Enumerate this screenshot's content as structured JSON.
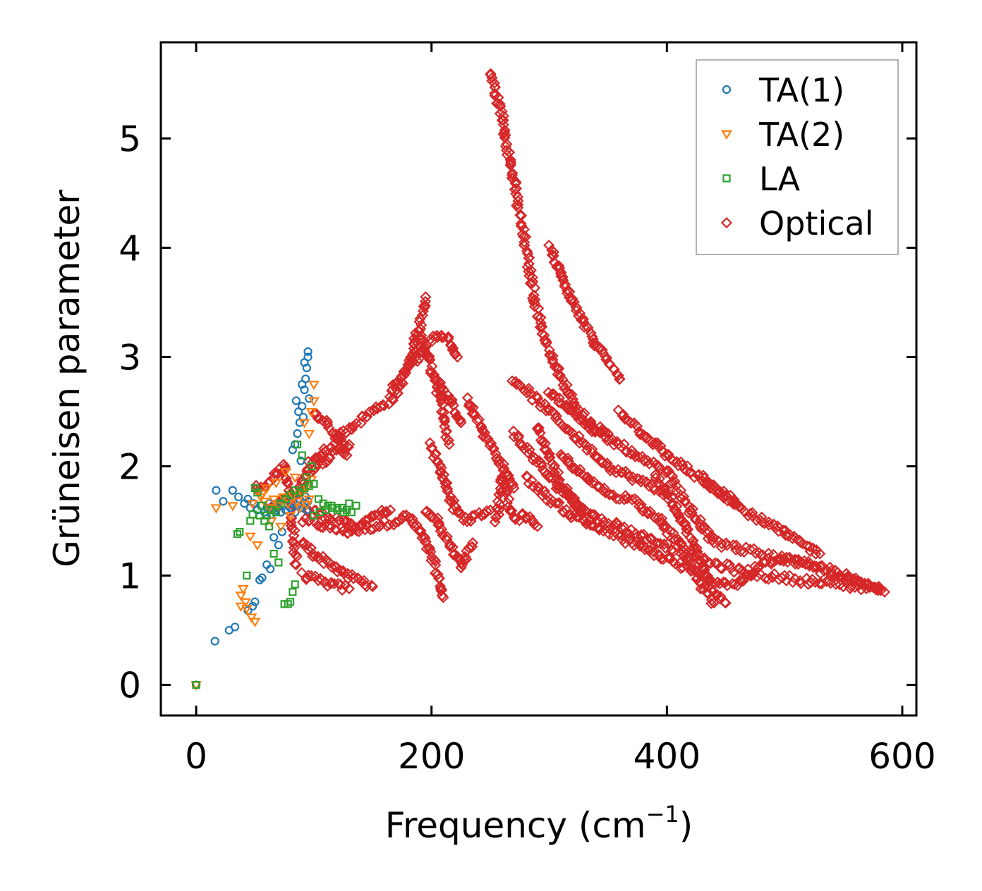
{
  "chart_data": {
    "type": "scatter",
    "title": "",
    "xlabel": "Frequency (cm",
    "xlabel_sup": "−1",
    "xlabel_end": ")",
    "ylabel": "Grüneisen parameter",
    "xlim": [
      -30,
      612
    ],
    "ylim": [
      -0.28,
      5.88
    ],
    "xticks": [
      0,
      200,
      400,
      600
    ],
    "xtick_labels": [
      "0",
      "200",
      "400",
      "600"
    ],
    "yticks": [
      0,
      1,
      2,
      3,
      4,
      5
    ],
    "ytick_labels": [
      "0",
      "1",
      "2",
      "3",
      "4",
      "5"
    ],
    "grid": false,
    "legend_position": "top-right",
    "series": [
      {
        "name": "TA(1)",
        "marker": "circle",
        "color": "#1f77b4",
        "x": [
          0,
          16,
          28,
          33,
          17,
          23,
          31,
          36,
          41,
          44,
          46,
          49,
          52,
          55,
          58,
          60,
          62,
          64,
          66,
          68,
          70,
          72,
          74,
          76,
          78,
          80,
          82,
          84,
          86,
          88,
          90,
          92,
          93,
          94,
          95,
          54,
          60,
          63,
          66,
          70,
          73,
          50,
          56,
          44,
          48,
          84,
          86,
          88,
          90,
          92,
          93,
          94,
          95,
          96,
          91,
          89,
          82,
          85,
          87,
          90,
          92,
          95
        ],
        "y": [
          0,
          0.4,
          0.5,
          0.53,
          1.78,
          1.68,
          1.78,
          1.72,
          1.66,
          1.7,
          1.62,
          1.66,
          1.6,
          1.64,
          1.58,
          1.62,
          1.66,
          1.56,
          1.62,
          1.6,
          1.66,
          1.58,
          1.64,
          1.6,
          1.7,
          1.62,
          1.66,
          1.58,
          1.64,
          1.7,
          1.62,
          1.66,
          1.72,
          1.6,
          1.68,
          0.96,
          1.1,
          1.06,
          1.35,
          1.28,
          1.4,
          0.76,
          0.98,
          0.68,
          0.72,
          2.2,
          2.3,
          2.4,
          2.55,
          2.7,
          2.8,
          2.9,
          3.05,
          2.62,
          2.45,
          2.05,
          2.15,
          2.6,
          2.5,
          2.75,
          2.95,
          3.0
        ]
      },
      {
        "name": "TA(2)",
        "marker": "triangle-down",
        "color": "#ff7f0e",
        "x": [
          0,
          17,
          31,
          38,
          40,
          43,
          47,
          50,
          55,
          58,
          62,
          66,
          70,
          74,
          78,
          82,
          86,
          90,
          94,
          98,
          46,
          52,
          64,
          72,
          80,
          88,
          96,
          100,
          92,
          84,
          76,
          68,
          60,
          56,
          48,
          42,
          38,
          100,
          98,
          96,
          94
        ],
        "y": [
          0,
          1.62,
          1.64,
          0.82,
          0.88,
          0.7,
          0.62,
          0.58,
          1.72,
          1.68,
          1.62,
          1.7,
          1.64,
          1.72,
          1.66,
          1.74,
          1.68,
          1.76,
          1.8,
          1.88,
          1.36,
          1.28,
          1.5,
          1.45,
          1.55,
          1.62,
          2.3,
          2.75,
          2.4,
          1.9,
          1.95,
          1.85,
          1.8,
          1.75,
          1.66,
          0.76,
          0.72,
          2.6,
          2.5,
          1.7,
          1.65
        ]
      },
      {
        "name": "LA",
        "marker": "square",
        "color": "#2ca02c",
        "x": [
          0,
          35,
          37,
          43,
          46,
          48,
          50,
          52,
          56,
          60,
          64,
          68,
          72,
          76,
          80,
          84,
          88,
          92,
          96,
          100,
          104,
          108,
          112,
          116,
          120,
          124,
          128,
          132,
          136,
          78,
          80,
          82,
          84,
          75,
          70,
          66,
          62,
          58,
          54,
          100,
          105,
          110,
          115,
          120,
          125,
          130,
          86,
          90,
          94,
          98
        ],
        "y": [
          0,
          1.38,
          1.4,
          1.0,
          1.5,
          1.56,
          1.8,
          1.76,
          1.64,
          1.55,
          1.6,
          1.58,
          1.66,
          1.7,
          1.74,
          1.78,
          1.76,
          1.8,
          1.82,
          1.84,
          1.7,
          1.66,
          1.64,
          1.62,
          1.6,
          1.62,
          1.6,
          1.58,
          1.64,
          0.74,
          0.76,
          0.85,
          0.92,
          0.74,
          1.12,
          1.2,
          1.45,
          1.5,
          1.55,
          1.55,
          1.58,
          1.6,
          1.64,
          1.62,
          1.58,
          1.66,
          2.2,
          2.1,
          1.9,
          2.0
        ]
      },
      {
        "name": "Optical",
        "marker": "diamond",
        "color": "#d62728",
        "segments": [
          {
            "x": [
              90,
              110,
              130,
              150,
              170,
              180,
              190,
              200,
              210
            ],
            "y": [
              1.5,
              1.45,
              1.4,
              1.45,
              1.5,
              1.55,
              1.4,
              1.2,
              0.8
            ]
          },
          {
            "x": [
              95,
              110,
              125,
              135,
              150,
              165
            ],
            "y": [
              1.6,
              1.55,
              1.5,
              1.42,
              1.55,
              1.6
            ]
          },
          {
            "x": [
              90,
              105,
              120,
              130
            ],
            "y": [
              1.0,
              0.95,
              0.9,
              0.88
            ]
          },
          {
            "x": [
              90,
              100,
              115,
              128,
              140,
              150
            ],
            "y": [
              1.3,
              1.2,
              1.1,
              1.0,
              0.95,
              0.9
            ]
          },
          {
            "x": [
              95,
              110,
              130,
              150,
              170,
              180,
              190,
              195
            ],
            "y": [
              2.0,
              2.15,
              2.35,
              2.5,
              2.65,
              2.9,
              3.3,
              3.55
            ]
          },
          {
            "x": [
              90,
              100,
              115,
              130
            ],
            "y": [
              1.9,
              2.0,
              2.1,
              2.2
            ]
          },
          {
            "x": [
              100,
              110,
              120,
              128
            ],
            "y": [
              2.5,
              2.4,
              2.25,
              2.1
            ]
          },
          {
            "x": [
              165,
              180,
              195,
              205,
              215,
              222
            ],
            "y": [
              2.7,
              2.9,
              3.1,
              3.2,
              3.15,
              3.0
            ]
          },
          {
            "x": [
              190,
              200,
              210,
              215
            ],
            "y": [
              3.2,
              2.9,
              2.5,
              2.2
            ]
          },
          {
            "x": [
              195,
              205,
              215,
              225,
              235
            ],
            "y": [
              1.6,
              1.5,
              1.3,
              1.1,
              1.3
            ]
          },
          {
            "x": [
              200,
              210,
              220,
              230,
              240,
              250
            ],
            "y": [
              2.2,
              1.9,
              1.6,
              1.5,
              1.55,
              1.6
            ]
          },
          {
            "x": [
              205,
              215,
              225
            ],
            "y": [
              2.8,
              2.6,
              2.4
            ]
          },
          {
            "x": [
              230,
              240,
              250,
              260,
              270
            ],
            "y": [
              2.6,
              2.4,
              2.2,
              2.0,
              1.8
            ]
          },
          {
            "x": [
              250,
              255,
              260,
              265,
              270,
              275,
              280,
              285,
              290,
              300,
              310,
              320,
              330,
              340,
              350
            ],
            "y": [
              5.6,
              5.4,
              5.2,
              4.9,
              4.6,
              4.3,
              4.0,
              3.7,
              3.4,
              3.05,
              2.8,
              2.6,
              2.45,
              2.35,
              2.3
            ]
          },
          {
            "x": [
              270,
              280,
              290,
              300,
              310,
              320,
              330,
              340,
              350,
              360,
              370,
              380,
              390,
              400
            ],
            "y": [
              2.8,
              2.7,
              2.6,
              2.5,
              2.4,
              2.3,
              2.2,
              2.1,
              2.0,
              1.95,
              1.9,
              1.85,
              1.8,
              1.75
            ]
          },
          {
            "x": [
              270,
              285,
              300,
              315,
              330,
              345,
              360,
              375,
              390,
              405,
              420,
              435,
              450,
              465,
              480,
              500,
              520,
              540,
              560,
              580
            ],
            "y": [
              2.3,
              2.1,
              1.9,
              1.75,
              1.6,
              1.5,
              1.45,
              1.38,
              1.32,
              1.25,
              1.2,
              1.12,
              1.08,
              1.04,
              1.0,
              0.98,
              0.95,
              0.92,
              0.9,
              0.88
            ]
          },
          {
            "x": [
              280,
              300,
              320,
              340,
              360,
              380,
              400,
              420,
              440,
              460,
              480,
              500,
              520,
              540,
              560,
              580
            ],
            "y": [
              1.9,
              1.7,
              1.55,
              1.45,
              1.35,
              1.25,
              1.15,
              1.05,
              0.95,
              0.92,
              1.1,
              1.15,
              1.1,
              1.0,
              0.95,
              0.9
            ]
          },
          {
            "x": [
              300,
              320,
              340,
              360,
              380,
              400,
              420,
              440
            ],
            "y": [
              2.7,
              2.5,
              2.3,
              2.2,
              2.05,
              1.95,
              1.6,
              1.3
            ]
          },
          {
            "x": [
              310,
              330,
              350,
              370,
              390,
              410,
              430,
              440
            ],
            "y": [
              2.1,
              1.9,
              1.75,
              1.7,
              1.55,
              1.3,
              0.9,
              0.75
            ]
          },
          {
            "x": [
              300,
              310,
              320,
              330,
              340,
              350,
              360
            ],
            "y": [
              4.0,
              3.75,
              3.5,
              3.3,
              3.1,
              2.95,
              2.8
            ]
          },
          {
            "x": [
              360,
              380,
              400,
              420,
              440,
              460
            ],
            "y": [
              2.5,
              2.3,
              2.1,
              1.95,
              1.8,
              1.65
            ]
          },
          {
            "x": [
              390,
              400,
              410,
              420,
              430,
              440,
              450
            ],
            "y": [
              1.9,
              1.75,
              1.55,
              1.35,
              1.1,
              0.85,
              0.75
            ]
          },
          {
            "x": [
              440,
              460,
              480,
              500,
              520,
              540,
              560,
              585
            ],
            "y": [
              1.3,
              1.25,
              1.2,
              1.15,
              1.1,
              1.05,
              0.95,
              0.85
            ]
          },
          {
            "x": [
              430,
              445,
              455,
              465,
              530
            ],
            "y": [
              1.9,
              1.75,
              1.7,
              1.6,
              1.2
            ]
          },
          {
            "x": [
              50,
              60,
              70,
              75,
              80,
              85
            ],
            "y": [
              1.8,
              1.85,
              1.95,
              2.0,
              1.65,
              1.1
            ]
          },
          {
            "x": [
              62,
              70,
              78,
              86,
              92
            ],
            "y": [
              1.6,
              1.65,
              1.7,
              1.75,
              1.85
            ]
          },
          {
            "x": [
              255,
              260,
              270,
              280,
              290
            ],
            "y": [
              1.5,
              1.9,
              1.5,
              1.55,
              1.45
            ]
          },
          {
            "x": [
              290,
              300,
              310,
              320,
              330
            ],
            "y": [
              2.35,
              2.1,
              1.85,
              1.7,
              1.5
            ]
          }
        ]
      }
    ]
  }
}
